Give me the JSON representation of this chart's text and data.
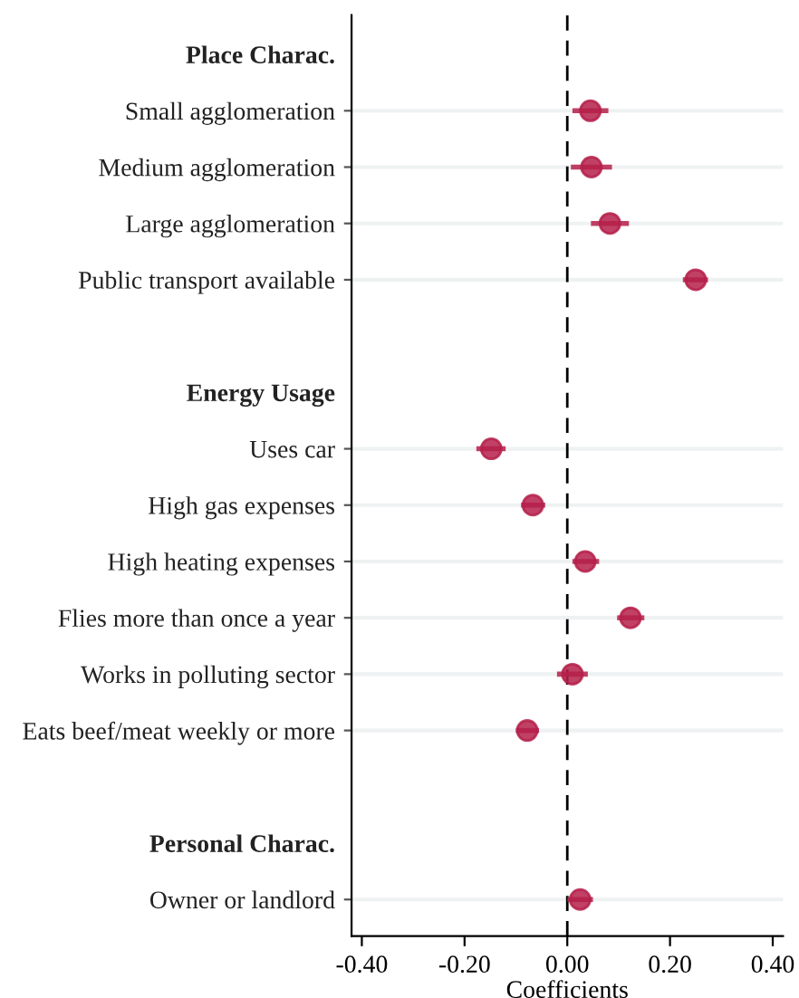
{
  "chart_data": {
    "type": "scatter",
    "orientation": "horizontal",
    "xlabel": "Coefficients",
    "categories": [
      "Place Charac.",
      "Small agglomeration",
      "Medium agglomeration",
      "Large agglomeration",
      "Public transport available",
      null,
      "Energy Usage",
      "Uses car",
      "High gas expenses",
      "High heating expenses",
      "Flies more than once a year",
      "Works in polluting sector",
      "Eats beef/meat weekly or more",
      null,
      "Personal Charac.",
      "Owner or landlord"
    ],
    "values": [
      null,
      0.045,
      0.047,
      0.083,
      0.25,
      null,
      null,
      -0.148,
      -0.067,
      0.035,
      0.123,
      0.01,
      -0.078,
      null,
      null,
      0.025
    ],
    "errors": [
      null,
      [
        0.01,
        0.08
      ],
      [
        0.007,
        0.087
      ],
      [
        0.046,
        0.12
      ],
      [
        0.225,
        0.274
      ],
      null,
      null,
      [
        -0.177,
        -0.12
      ],
      [
        -0.09,
        -0.043
      ],
      [
        0.01,
        0.062
      ],
      [
        0.097,
        0.15
      ],
      [
        -0.02,
        0.04
      ],
      [
        -0.1,
        -0.055
      ],
      null,
      null,
      [
        0.0,
        0.05
      ]
    ],
    "color": "#b5204a",
    "marker": "circle",
    "grid": "y",
    "xlim": [
      -0.42,
      0.42
    ],
    "xticks": [
      {
        "value": -0.4,
        "label": "-0.40"
      },
      {
        "value": -0.2,
        "label": "-0.20"
      },
      {
        "value": 0,
        "label": "0.00"
      },
      {
        "value": 0.2,
        "label": "0.20"
      },
      {
        "value": 0.4,
        "label": "0.40"
      }
    ],
    "ref_lines": [
      {
        "axis": "x",
        "value": 0,
        "label": null,
        "color": "#000000",
        "line_style": "dashed"
      }
    ]
  }
}
